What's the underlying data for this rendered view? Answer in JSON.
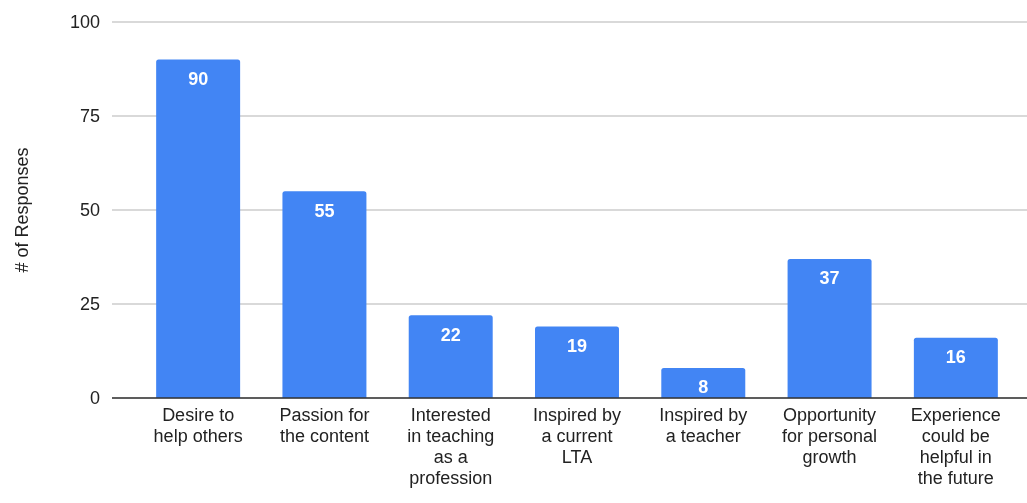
{
  "chart_data": {
    "type": "bar",
    "ylabel": "# of Responses",
    "categories": [
      "Desire to help others",
      "Passion for the content",
      "Interested in teaching as a profession",
      "Inspired by a current LTA",
      "Inspired by a teacher",
      "Opportunity for personal growth",
      "Experience could be helpful in the future"
    ],
    "values": [
      90,
      55,
      22,
      19,
      8,
      37,
      16
    ],
    "color": "#4285f4",
    "ylim": [
      0,
      100
    ],
    "yticks": [
      0,
      25,
      50,
      75,
      100
    ],
    "grid": "y",
    "data_labels": true
  }
}
